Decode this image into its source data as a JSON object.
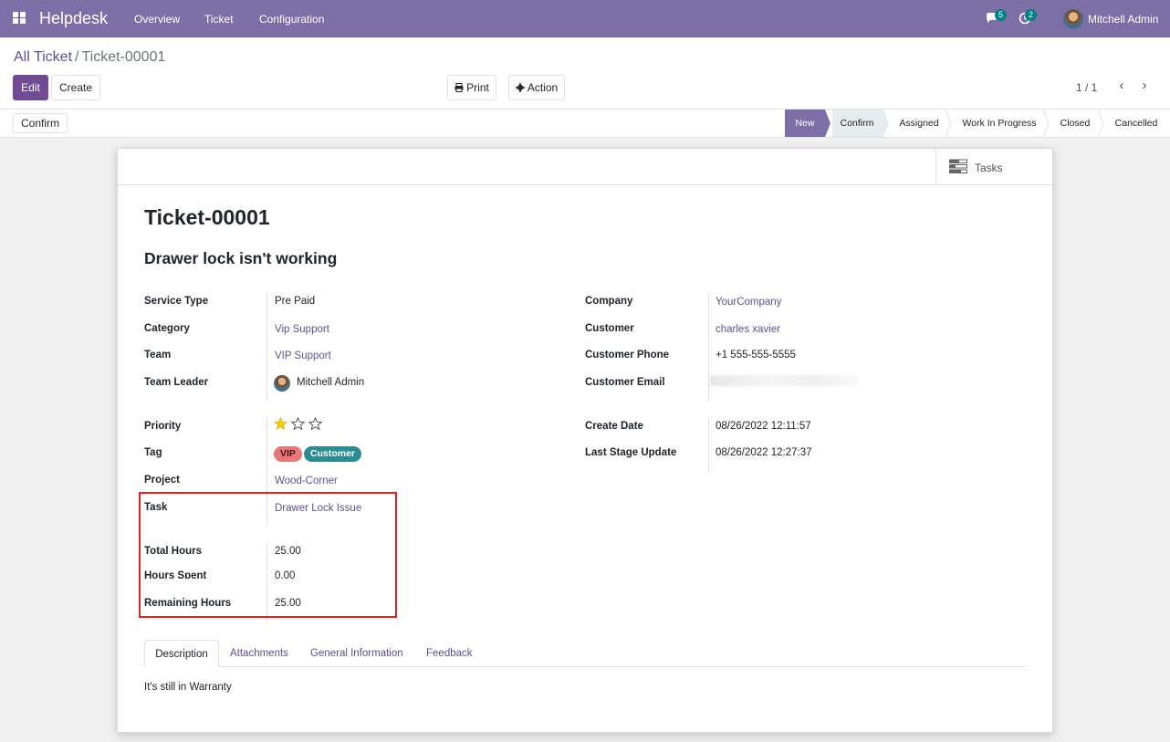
{
  "navbar": {
    "brand": "Helpdesk",
    "menu": [
      "Overview",
      "Ticket",
      "Configuration"
    ],
    "messages_count": "5",
    "activities_count": "2",
    "user_name": "Mitchell Admin"
  },
  "breadcrumb": {
    "parent": "All Ticket",
    "separator": "/",
    "current": "Ticket-00001"
  },
  "toolbar": {
    "edit": "Edit",
    "create": "Create",
    "print": "Print",
    "action": "Action",
    "pager": "1 / 1"
  },
  "statusbar": {
    "confirm_button": "Confirm",
    "stages": [
      "New",
      "Confirm",
      "Assigned",
      "Work In Progress",
      "Closed",
      "Cancelled"
    ],
    "active_stage": "New"
  },
  "smart_button": {
    "tasks": "Tasks"
  },
  "ticket": {
    "name": "Ticket-00001",
    "subject": "Drawer lock isn't working"
  },
  "fields_left": {
    "service_type": {
      "label": "Service Type",
      "value": "Pre Paid"
    },
    "category": {
      "label": "Category",
      "value": "Vip Support"
    },
    "team": {
      "label": "Team",
      "value": "VIP Support"
    },
    "team_leader": {
      "label": "Team Leader",
      "value": "Mitchell Admin"
    },
    "priority": {
      "label": "Priority",
      "stars": 1,
      "max": 3
    },
    "tag": {
      "label": "Tag",
      "values": [
        "VIP",
        "Customer"
      ]
    },
    "project": {
      "label": "Project",
      "value": "Wood-Corner"
    },
    "task": {
      "label": "Task",
      "value": "Drawer Lock Issue"
    },
    "total_hours": {
      "label": "Total Hours",
      "value": "25.00"
    },
    "hours_spent": {
      "label": "Hours Spent",
      "value": "0.00"
    },
    "remaining_hours": {
      "label": "Remaining Hours",
      "value": "25.00"
    }
  },
  "fields_right": {
    "company": {
      "label": "Company",
      "value": "YourCompany"
    },
    "customer": {
      "label": "Customer",
      "value": "charles xavier"
    },
    "customer_phone": {
      "label": "Customer Phone",
      "value": "+1 555-555-5555"
    },
    "customer_email": {
      "label": "Customer Email",
      "value": ""
    },
    "create_date": {
      "label": "Create Date",
      "value": "08/26/2022 12:11:57"
    },
    "last_stage_update": {
      "label": "Last Stage Update",
      "value": "08/26/2022 12:27:37"
    }
  },
  "tabs": [
    "Description",
    "Attachments",
    "General Information",
    "Feedback"
  ],
  "description": "It's still in Warranty",
  "colors": {
    "navbar": "#7c6fa6",
    "primary": "#714b94",
    "link": "#5f5188",
    "highlight": "#e0202a",
    "tag_vip": "#e6787a",
    "tag_customer": "#2e8b8f",
    "badge": "#017e84"
  }
}
